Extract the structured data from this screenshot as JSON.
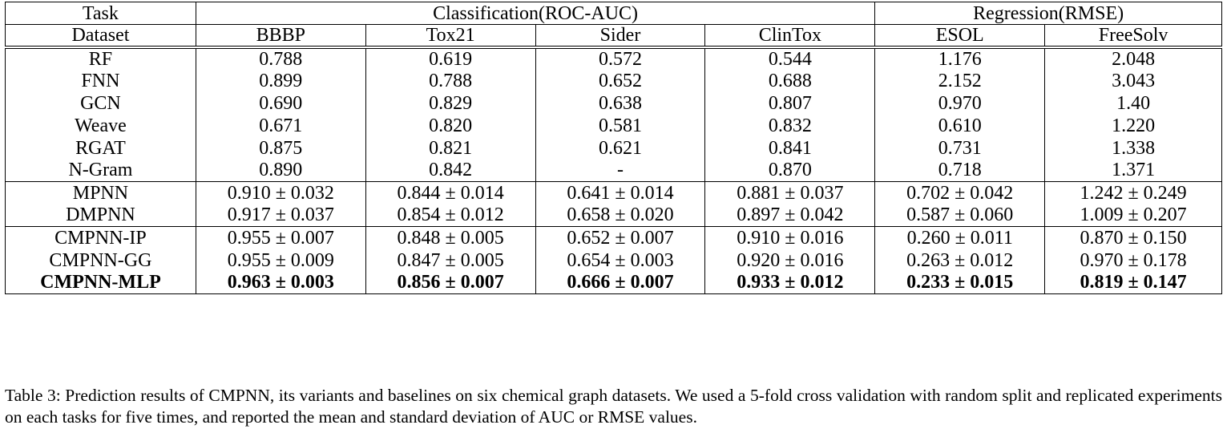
{
  "header": {
    "task_label": "Task",
    "classification_label": "Classification(ROC-AUC)",
    "regression_label": "Regression(RMSE)",
    "dataset_label": "Dataset",
    "datasets": [
      "BBBP",
      "Tox21",
      "Sider",
      "ClinTox",
      "ESOL",
      "FreeSolv"
    ]
  },
  "groups": [
    {
      "rows": [
        {
          "method": "RF",
          "values": [
            "0.788",
            "0.619",
            "0.572",
            "0.544",
            "1.176",
            "2.048"
          ]
        },
        {
          "method": "FNN",
          "values": [
            "0.899",
            "0.788",
            "0.652",
            "0.688",
            "2.152",
            "3.043"
          ]
        },
        {
          "method": "GCN",
          "values": [
            "0.690",
            "0.829",
            "0.638",
            "0.807",
            "0.970",
            "1.40"
          ]
        },
        {
          "method": "Weave",
          "values": [
            "0.671",
            "0.820",
            "0.581",
            "0.832",
            "0.610",
            "1.220"
          ]
        },
        {
          "method": "RGAT",
          "values": [
            "0.875",
            "0.821",
            "0.621",
            "0.841",
            "0.731",
            "1.338"
          ]
        },
        {
          "method": "N-Gram",
          "values": [
            "0.890",
            "0.842",
            "-",
            "0.870",
            "0.718",
            "1.371"
          ]
        }
      ]
    },
    {
      "rows": [
        {
          "method": "MPNN",
          "values": [
            "0.910 ± 0.032",
            "0.844 ± 0.014",
            "0.641 ± 0.014",
            "0.881 ± 0.037",
            "0.702 ± 0.042",
            "1.242 ± 0.249"
          ]
        },
        {
          "method": "DMPNN",
          "values": [
            "0.917 ± 0.037",
            "0.854 ± 0.012",
            "0.658 ± 0.020",
            "0.897 ± 0.042",
            "0.587 ± 0.060",
            "1.009 ± 0.207"
          ]
        }
      ]
    },
    {
      "rows": [
        {
          "method": "CMPNN-IP",
          "values": [
            "0.955 ± 0.007",
            "0.848 ± 0.005",
            "0.652 ± 0.007",
            "0.910 ± 0.016",
            "0.260 ± 0.011",
            "0.870 ± 0.150"
          ]
        },
        {
          "method": "CMPNN-GG",
          "values": [
            "0.955 ± 0.009",
            "0.847 ± 0.005",
            "0.654 ± 0.003",
            "0.920 ± 0.016",
            "0.263 ± 0.012",
            "0.970 ± 0.178"
          ]
        },
        {
          "method": "CMPNN-MLP",
          "bold": true,
          "values": [
            "0.963 ± 0.003",
            "0.856 ± 0.007",
            "0.666 ± 0.007",
            "0.933 ± 0.012",
            "0.233 ± 0.015",
            "0.819 ± 0.147"
          ]
        }
      ]
    }
  ],
  "caption": "Table 3: Prediction results of CMPNN, its variants and baselines on six chemical graph datasets. We used a 5-fold cross validation with random split and replicated experiments on each tasks for five times, and reported the mean and standard deviation of AUC or RMSE values."
}
